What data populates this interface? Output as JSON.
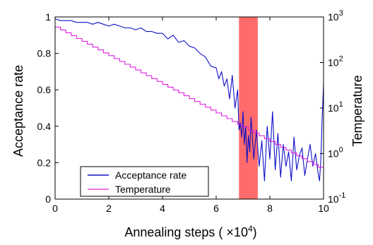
{
  "chart_data": {
    "type": "line",
    "xlabel": "Annealing steps ( ×10",
    "xlabel_exponent": "4",
    "xlabel_close": ")",
    "ylabel_left": "Acceptance rate",
    "ylabel_right": "Temperature",
    "xlim": [
      0,
      10
    ],
    "ylim_left": [
      0,
      1
    ],
    "ylim_right": [
      0.1,
      1000
    ],
    "right_axis_scale": "log",
    "x_ticks": [
      "0",
      "2",
      "4",
      "6",
      "8",
      "10"
    ],
    "x_tick_values": [
      0,
      2,
      4,
      6,
      8,
      10
    ],
    "y_left_ticks": [
      "0",
      "0.2",
      "0.4",
      "0.6",
      "0.8",
      "1"
    ],
    "y_left_tick_values": [
      0,
      0.2,
      0.4,
      0.6,
      0.8,
      1
    ],
    "y_right_ticks": [
      {
        "base": "10",
        "exp": "-1"
      },
      {
        "base": "10",
        "exp": "0"
      },
      {
        "base": "10",
        "exp": "1"
      },
      {
        "base": "10",
        "exp": "2"
      },
      {
        "base": "10",
        "exp": "3"
      }
    ],
    "y_right_tick_values": [
      0.1,
      1,
      10,
      100,
      1000
    ],
    "highlight_band": {
      "x": [
        6.85,
        7.55
      ],
      "color": "#ff6b6b"
    },
    "legend": {
      "position": "lower-left"
    },
    "series": [
      {
        "name": "Acceptance rate",
        "axis": "left",
        "color": "#1010c8",
        "x": [
          0,
          0.2,
          0.4,
          0.6,
          0.8,
          1.0,
          1.2,
          1.4,
          1.6,
          1.8,
          2.0,
          2.2,
          2.4,
          2.6,
          2.8,
          3.0,
          3.2,
          3.4,
          3.6,
          3.8,
          4.0,
          4.2,
          4.4,
          4.6,
          4.8,
          5.0,
          5.2,
          5.4,
          5.6,
          5.8,
          6.0,
          6.1,
          6.2,
          6.3,
          6.4,
          6.5,
          6.6,
          6.7,
          6.8,
          6.85,
          6.9,
          6.95,
          7.0,
          7.05,
          7.1,
          7.15,
          7.2,
          7.25,
          7.3,
          7.4,
          7.5,
          7.6,
          7.7,
          7.8,
          7.9,
          8.0,
          8.1,
          8.2,
          8.3,
          8.4,
          8.5,
          8.6,
          8.7,
          8.8,
          8.9,
          9.0,
          9.1,
          9.2,
          9.3,
          9.4,
          9.5,
          9.6,
          9.7,
          9.8,
          9.85,
          9.9,
          9.95,
          10.0
        ],
        "y": [
          0.99,
          0.98,
          0.98,
          0.98,
          0.97,
          0.97,
          0.97,
          0.96,
          0.97,
          0.96,
          0.95,
          0.96,
          0.95,
          0.94,
          0.94,
          0.93,
          0.94,
          0.92,
          0.92,
          0.91,
          0.91,
          0.88,
          0.9,
          0.86,
          0.87,
          0.84,
          0.83,
          0.8,
          0.78,
          0.73,
          0.72,
          0.66,
          0.7,
          0.62,
          0.66,
          0.55,
          0.68,
          0.5,
          0.6,
          0.38,
          0.42,
          0.34,
          0.48,
          0.3,
          0.4,
          0.2,
          0.35,
          0.26,
          0.45,
          0.22,
          0.38,
          0.18,
          0.32,
          0.1,
          0.4,
          0.22,
          0.48,
          0.16,
          0.36,
          0.12,
          0.3,
          0.18,
          0.26,
          0.1,
          0.34,
          0.16,
          0.24,
          0.28,
          0.13,
          0.22,
          0.3,
          0.18,
          0.25,
          0.14,
          0.1,
          0.22,
          0.45,
          0.63
        ]
      },
      {
        "name": "Temperature",
        "axis": "right",
        "scale": "log",
        "color": "#e020e0",
        "style": "step",
        "x_start": 0,
        "x_end": 10,
        "steps": 50,
        "t_start": 600,
        "t_end": 0.5
      }
    ]
  }
}
